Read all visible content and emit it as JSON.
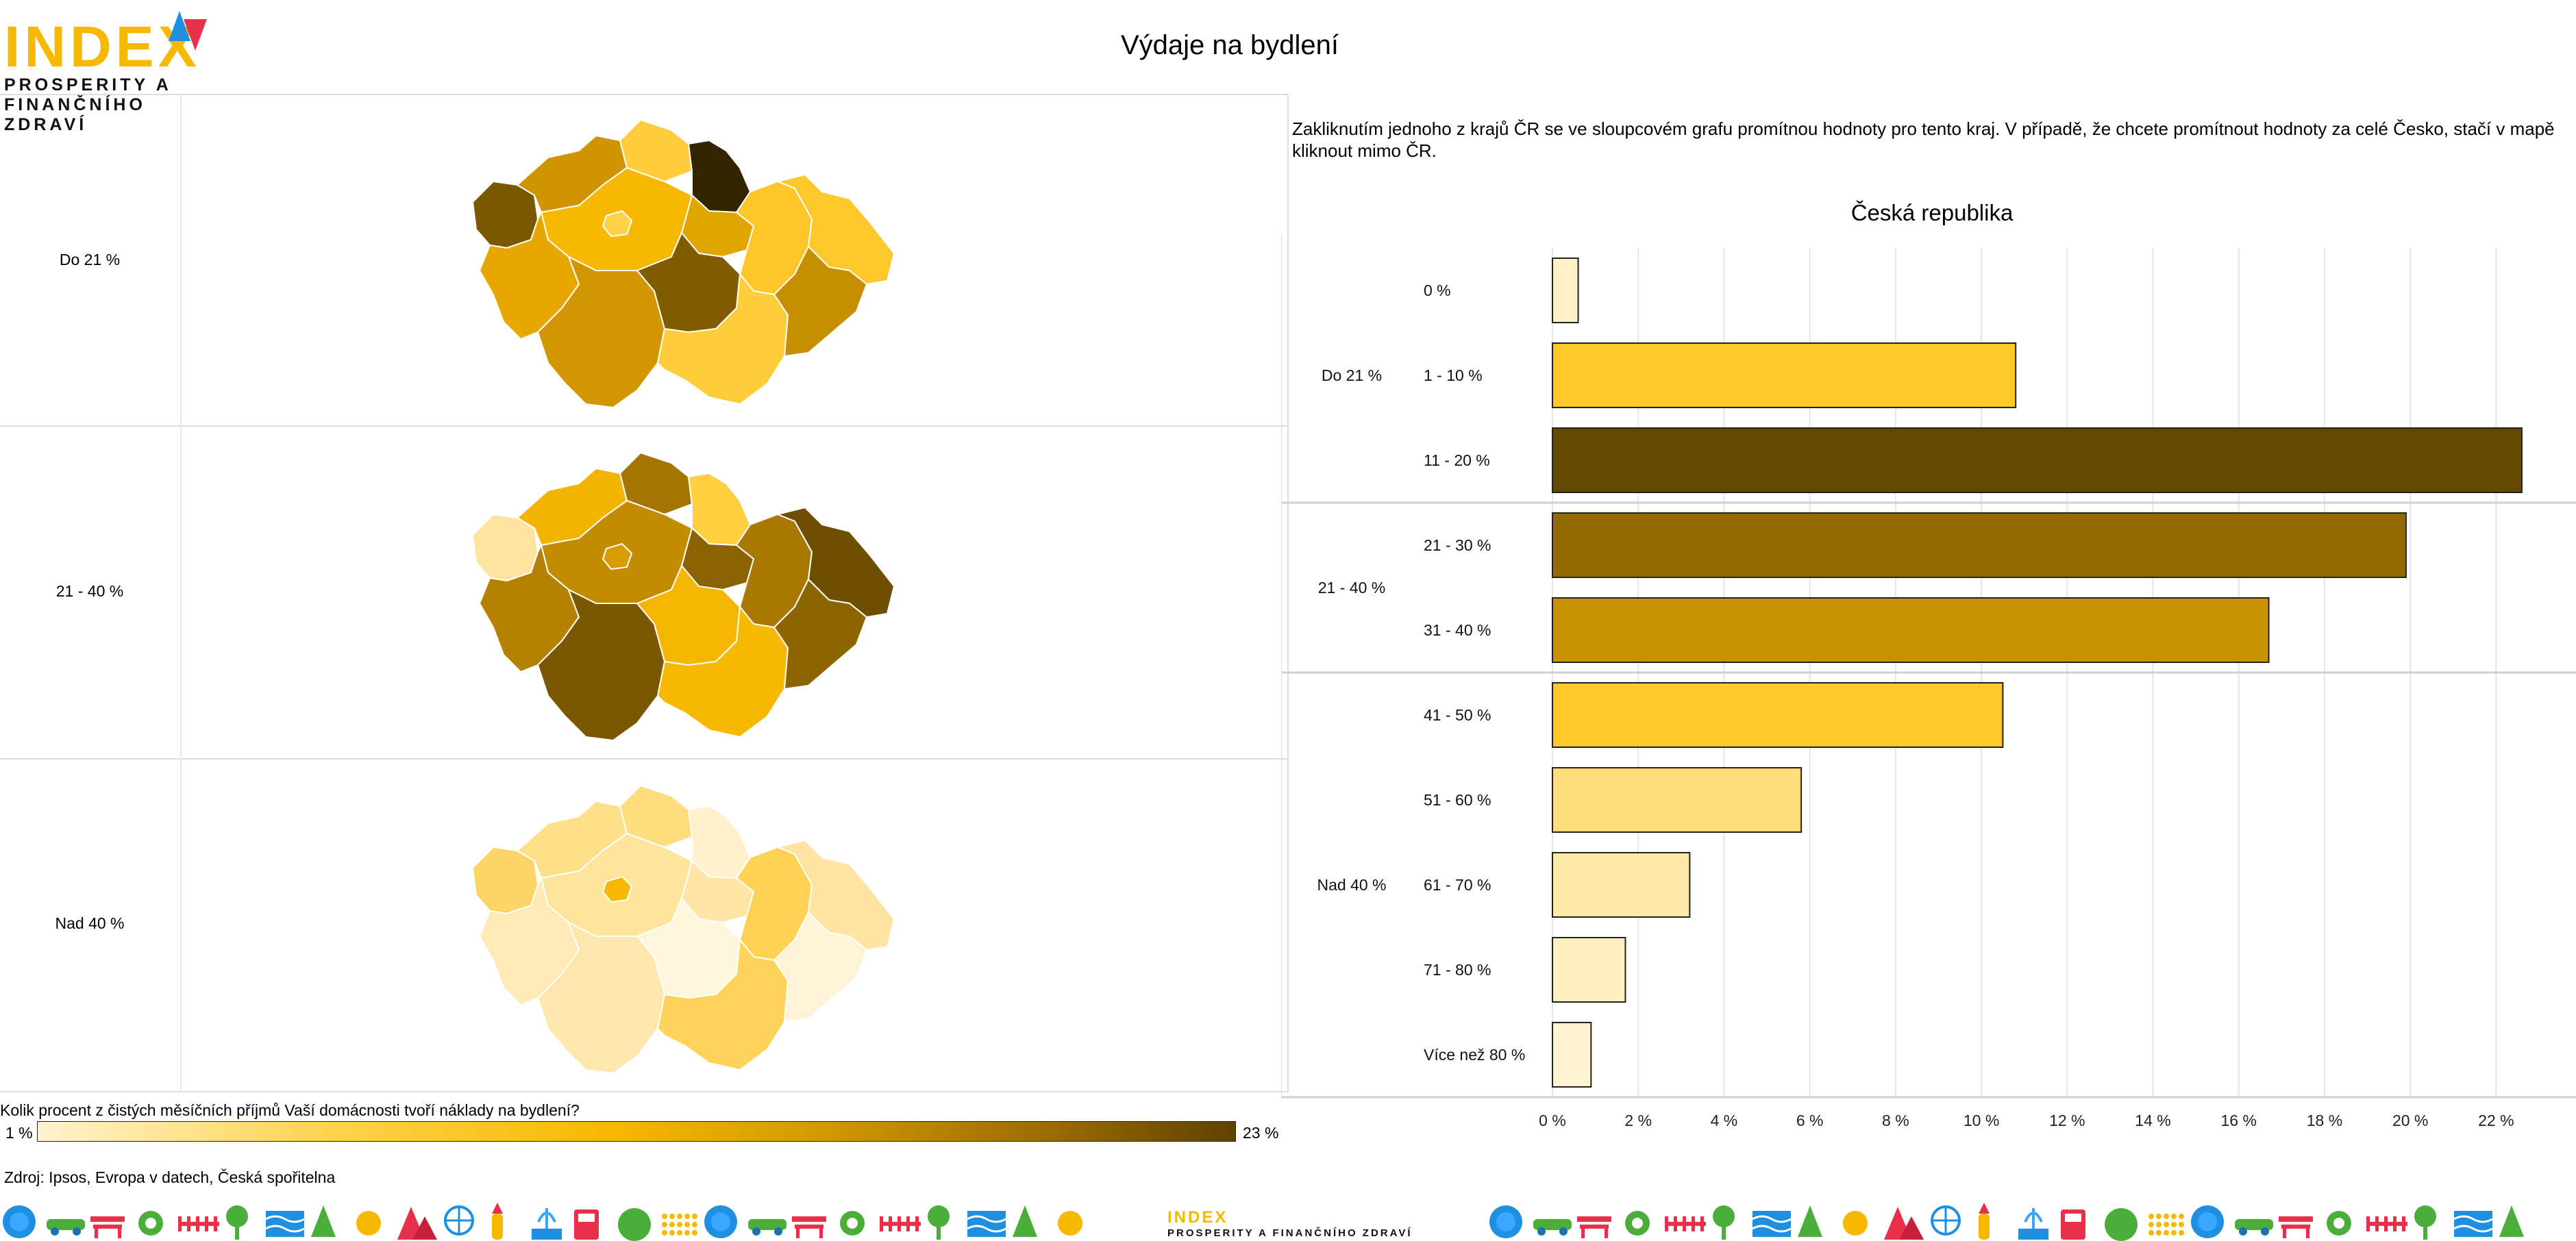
{
  "logo": {
    "word": "INDEX",
    "subtitle": "PROSPERITY A FINANČNÍHO ZDRAVÍ"
  },
  "title": "Výdaje na bydlení",
  "instruction": "Zakliknutím jednoho z krajů ČR se ve sloupcovém grafu promítnou hodnoty pro tento kraj. V případě, že chcete promítnout hodnoty za celé Česko, stačí v mapě kliknout mimo ČR.",
  "map_rows": [
    {
      "label": "Do 21 %"
    },
    {
      "label": "21 - 40 %"
    },
    {
      "label": "Nad 40 %"
    }
  ],
  "legend": {
    "question": "Kolik procent z čistých měsíčních příjmů Vaší domácnosti tvoří náklady na bydlení?",
    "min": "1 %",
    "max": "23 %"
  },
  "source": "Zdroj: Ipsos, Evropa v datech, Česká spořitelna",
  "colors": {
    "brand_yellow": "#f6b800",
    "brand_red": "#e8304a",
    "brand_blue": "#1f8fe0"
  },
  "chart_data": {
    "type": "bar",
    "orientation": "horizontal",
    "title": "Česká republika",
    "groups": [
      {
        "label": "Do 21 %",
        "categories": [
          "0 %",
          "1 - 10 %",
          "11 - 20 %"
        ]
      },
      {
        "label": "21 - 40 %",
        "categories": [
          "21 - 30 %",
          "31 - 40 %"
        ]
      },
      {
        "label": "Nad 40 %",
        "categories": [
          "41 - 50 %",
          "51 - 60 %",
          "61 - 70 %",
          "71 - 80 %",
          "Více než 80 %"
        ]
      }
    ],
    "categories": [
      "0 %",
      "1 - 10 %",
      "11 - 20 %",
      "21 - 30 %",
      "31 - 40 %",
      "41 - 50 %",
      "51 - 60 %",
      "61 - 70 %",
      "71 - 80 %",
      "Více než 80 %"
    ],
    "values": [
      0.6,
      10.8,
      22.6,
      19.9,
      16.7,
      10.5,
      5.8,
      3.2,
      1.7,
      0.9
    ],
    "bar_colors": [
      "#fff0c8",
      "#ffc82a",
      "#634800",
      "#946a00",
      "#c89200",
      "#ffc82a",
      "#ffdc7a",
      "#ffe9a8",
      "#fff0c2",
      "#fff3d0"
    ],
    "xlim": [
      0,
      23
    ],
    "xticks": [
      "0 %",
      "2 %",
      "4 %",
      "6 %",
      "8 %",
      "10 %",
      "12 %",
      "14 %",
      "16 %",
      "18 %",
      "20 %",
      "22 %"
    ],
    "grid": true
  },
  "footer": {
    "logo_word": "INDEX",
    "logo_subtitle": "PROSPERITY A FINANČNÍHO ZDRAVÍ",
    "icons": [
      "globe-icon",
      "car-icon",
      "bench-icon",
      "gear-icon",
      "fence-icon",
      "tree-icon",
      "waves-icon",
      "pine-icon",
      "sun-icon",
      "mountain-icon",
      "ferris-wheel-icon",
      "rocket-icon",
      "fountain-icon",
      "bus-icon",
      "hill-icon",
      "crowd-icon"
    ]
  }
}
